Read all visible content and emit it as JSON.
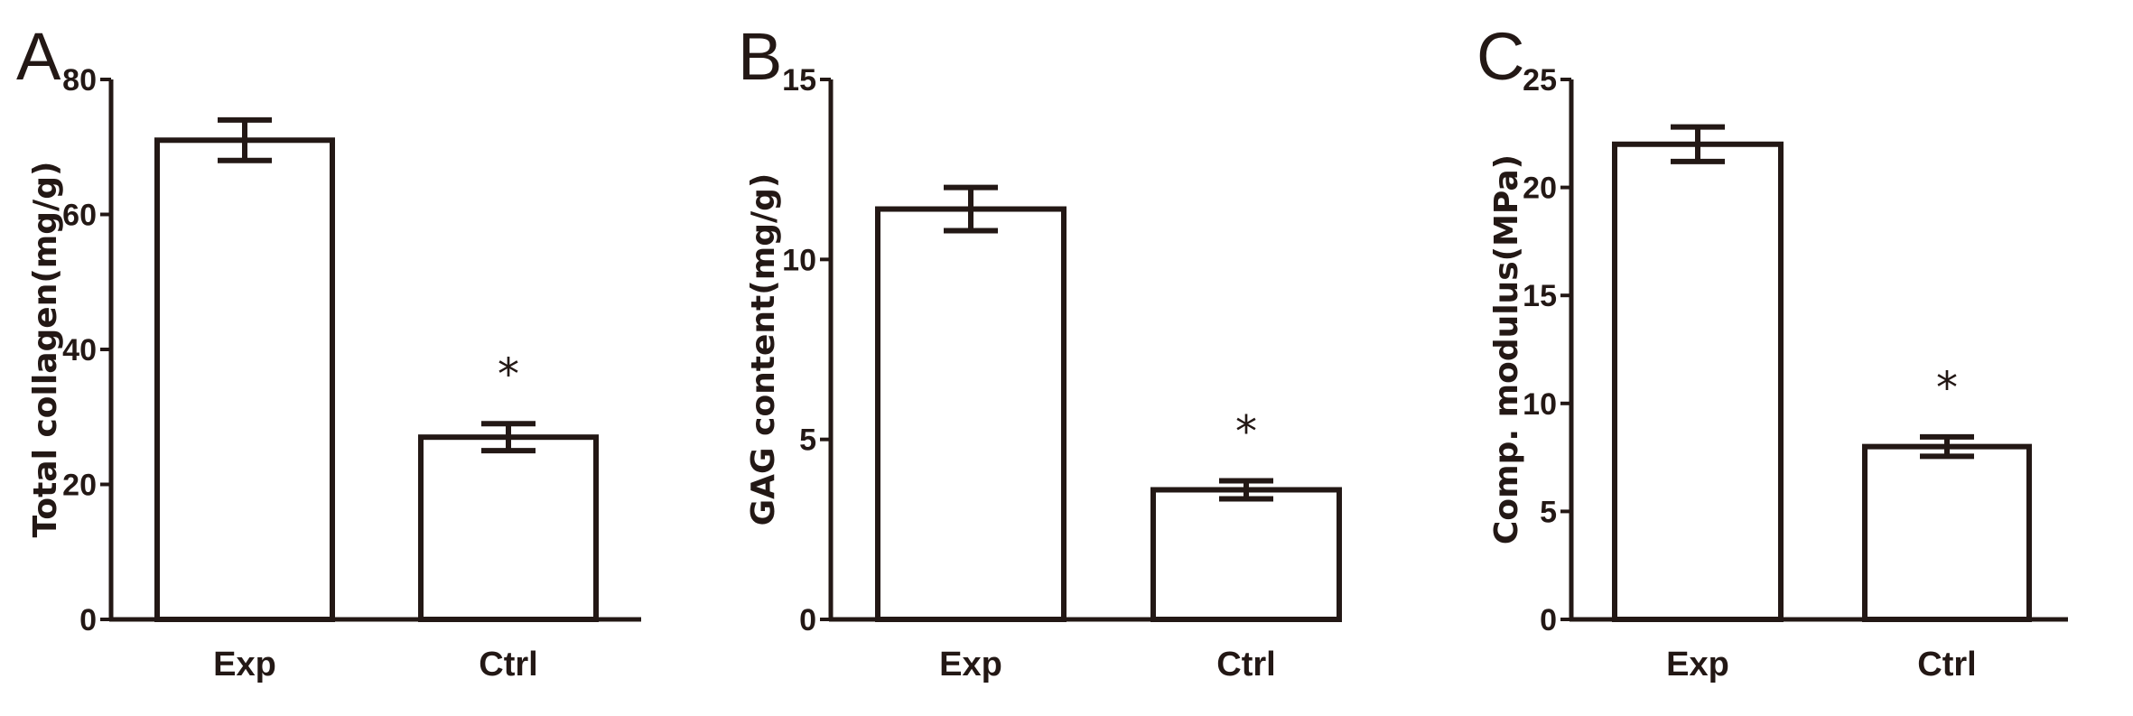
{
  "chart_data": [
    {
      "panel": "A",
      "type": "bar",
      "categories": [
        "Exp",
        "Ctrl"
      ],
      "values": [
        71,
        27
      ],
      "errors": [
        3,
        2
      ],
      "significance": [
        "",
        "*"
      ],
      "ylabel": "Total collagen(mg/g)",
      "ylim": [
        0,
        80
      ],
      "yticks": [
        0,
        20,
        40,
        60,
        80
      ]
    },
    {
      "panel": "B",
      "type": "bar",
      "categories": [
        "Exp",
        "Ctrl"
      ],
      "values": [
        11.4,
        3.6
      ],
      "errors": [
        0.6,
        0.25
      ],
      "significance": [
        "",
        "*"
      ],
      "ylabel": "GAG content(mg/g)",
      "ylim": [
        0,
        15
      ],
      "yticks": [
        0,
        5,
        10,
        15
      ]
    },
    {
      "panel": "C",
      "type": "bar",
      "categories": [
        "Exp",
        "Ctrl"
      ],
      "values": [
        22,
        8
      ],
      "errors": [
        0.8,
        0.45
      ],
      "significance": [
        "",
        "*"
      ],
      "ylabel": "Comp. modulus(MPa)",
      "ylim": [
        0,
        25
      ],
      "yticks": [
        0,
        5,
        10,
        15,
        20,
        25
      ]
    }
  ]
}
